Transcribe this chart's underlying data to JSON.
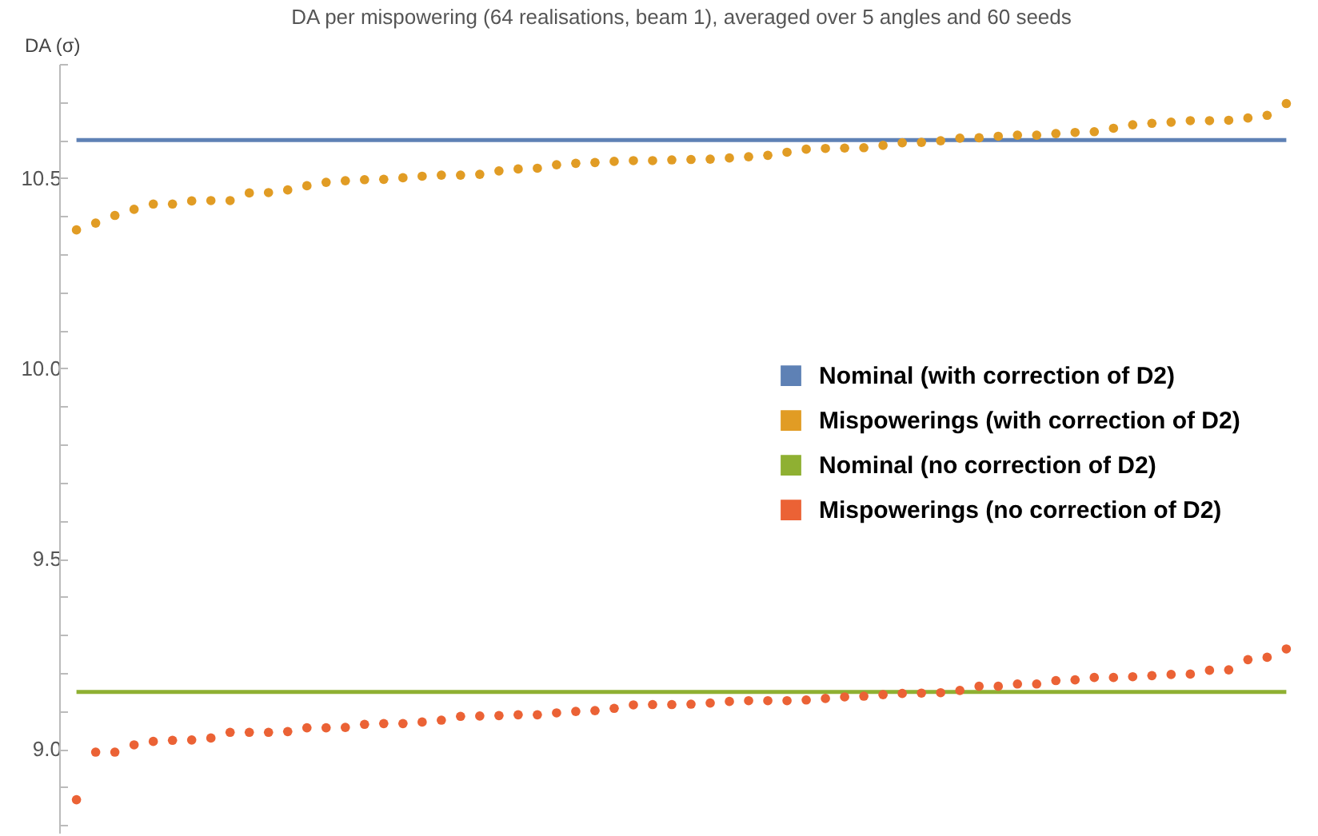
{
  "chart_data": {
    "type": "scatter",
    "title": "DA per mispowering (64 realisations, beam 1), averaged over 5 angles and 60 seeds",
    "ylabel": "DA (σ)",
    "categories": [
      null,
      null,
      null,
      null,
      null,
      null,
      null,
      null,
      null,
      null,
      null,
      null,
      null,
      null,
      null,
      null,
      null,
      null,
      null,
      null,
      null,
      null,
      null,
      null,
      null,
      null,
      null,
      null,
      null,
      null,
      null,
      null,
      null,
      null,
      null,
      null,
      null,
      null,
      null,
      null,
      null,
      null,
      null,
      null,
      null,
      null,
      null,
      null,
      null,
      null,
      null,
      null,
      null,
      null,
      null,
      null,
      null,
      null,
      null,
      null,
      null,
      null,
      null,
      null
    ],
    "series": [
      {
        "name": "Nominal (with correction of D2)",
        "type": "line",
        "marker": "none",
        "color": "#5e81b5",
        "values": [
          10.6,
          10.6,
          10.6,
          10.6,
          10.6,
          10.6,
          10.6,
          10.6,
          10.6,
          10.6,
          10.6,
          10.6,
          10.6,
          10.6,
          10.6,
          10.6,
          10.6,
          10.6,
          10.6,
          10.6,
          10.6,
          10.6,
          10.6,
          10.6,
          10.6,
          10.6,
          10.6,
          10.6,
          10.6,
          10.6,
          10.6,
          10.6,
          10.6,
          10.6,
          10.6,
          10.6,
          10.6,
          10.6,
          10.6,
          10.6,
          10.6,
          10.6,
          10.6,
          10.6,
          10.6,
          10.6,
          10.6,
          10.6,
          10.6,
          10.6,
          10.6,
          10.6,
          10.6,
          10.6,
          10.6,
          10.6,
          10.6,
          10.6,
          10.6,
          10.6,
          10.6,
          10.6,
          10.6,
          10.6
        ]
      },
      {
        "name": "Mispowerings  (with correction of D2)",
        "color": "#e19c24",
        "values": [
          10.364,
          10.382,
          10.402,
          10.418,
          10.432,
          10.432,
          10.44,
          10.441,
          10.441,
          10.461,
          10.462,
          10.469,
          10.48,
          10.489,
          10.493,
          10.496,
          10.497,
          10.501,
          10.505,
          10.508,
          10.508,
          10.51,
          10.519,
          10.524,
          10.526,
          10.535,
          10.539,
          10.541,
          10.544,
          10.546,
          10.546,
          10.548,
          10.549,
          10.55,
          10.553,
          10.556,
          10.56,
          10.568,
          10.576,
          10.578,
          10.579,
          10.58,
          10.586,
          10.593,
          10.594,
          10.598,
          10.605,
          10.606,
          10.61,
          10.613,
          10.613,
          10.617,
          10.62,
          10.622,
          10.631,
          10.64,
          10.644,
          10.647,
          10.651,
          10.651,
          10.652,
          10.658,
          10.665,
          10.696
        ]
      },
      {
        "name": "Nominal (no correction of D2)",
        "type": "line",
        "marker": "none",
        "color": "#8fb032",
        "values": [
          9.15,
          9.15,
          9.15,
          9.15,
          9.15,
          9.15,
          9.15,
          9.15,
          9.15,
          9.15,
          9.15,
          9.15,
          9.15,
          9.15,
          9.15,
          9.15,
          9.15,
          9.15,
          9.15,
          9.15,
          9.15,
          9.15,
          9.15,
          9.15,
          9.15,
          9.15,
          9.15,
          9.15,
          9.15,
          9.15,
          9.15,
          9.15,
          9.15,
          9.15,
          9.15,
          9.15,
          9.15,
          9.15,
          9.15,
          9.15,
          9.15,
          9.15,
          9.15,
          9.15,
          9.15,
          9.15,
          9.15,
          9.15,
          9.15,
          9.15,
          9.15,
          9.15,
          9.15,
          9.15,
          9.15,
          9.15,
          9.15,
          9.15,
          9.15,
          9.15,
          9.15,
          9.15,
          9.15,
          9.15
        ]
      },
      {
        "name": "Mispowerings  (no correction of D2)",
        "color": "#eb6235",
        "values": [
          8.867,
          8.992,
          8.992,
          9.011,
          9.02,
          9.023,
          9.024,
          9.029,
          9.044,
          9.044,
          9.044,
          9.046,
          9.056,
          9.056,
          9.057,
          9.065,
          9.067,
          9.067,
          9.071,
          9.076,
          9.086,
          9.087,
          9.088,
          9.09,
          9.09,
          9.095,
          9.099,
          9.101,
          9.107,
          9.116,
          9.117,
          9.117,
          9.118,
          9.121,
          9.125,
          9.127,
          9.127,
          9.127,
          9.129,
          9.133,
          9.137,
          9.139,
          9.143,
          9.146,
          9.147,
          9.148,
          9.154,
          9.165,
          9.165,
          9.171,
          9.171,
          9.18,
          9.182,
          9.188,
          9.188,
          9.19,
          9.193,
          9.196,
          9.197,
          9.207,
          9.208,
          9.235,
          9.241,
          9.263
        ]
      }
    ],
    "ylim": [
      8.78,
      10.8
    ],
    "yticks": [
      {
        "value": 8.8,
        "label": null
      },
      {
        "value": 8.9,
        "label": null
      },
      {
        "value": 9,
        "label": "9.0"
      },
      {
        "value": 9.1,
        "label": null
      },
      {
        "value": 9.2,
        "label": null
      },
      {
        "value": 9.3,
        "label": null
      },
      {
        "value": 9.4,
        "label": null
      },
      9.5,
      {
        "value": 9.6,
        "label": null
      },
      {
        "value": 9.7,
        "label": null
      },
      {
        "value": 9.8,
        "label": null
      },
      {
        "value": 9.9,
        "label": null
      },
      {
        "value": 10,
        "label": "10.0"
      },
      {
        "value": 10.1,
        "label": null
      },
      {
        "value": 10.2,
        "label": null
      },
      {
        "value": 10.3,
        "label": null
      },
      {
        "value": 10.4,
        "label": null
      },
      10.5,
      {
        "value": 10.6,
        "label": null
      },
      {
        "value": 10.7,
        "label": null
      },
      {
        "value": 10.8,
        "label": null
      }
    ],
    "tick_labels": "y",
    "grid": false,
    "legend": "right",
    "marker": "circle"
  }
}
